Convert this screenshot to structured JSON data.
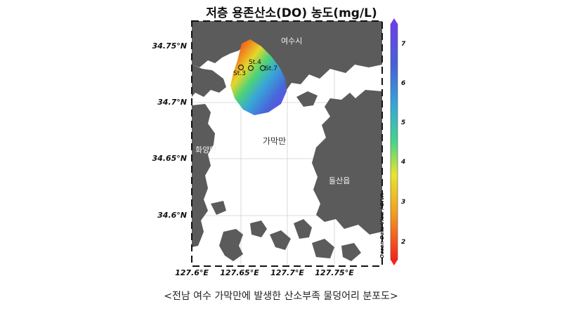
{
  "title": "저층 용존산소(DO) 농도(mg/L)",
  "caption": "<전남 여수 가막만에 발생한 산소부족 물덩어리 분포도>",
  "axes": {
    "lat_ticks": [
      "34.75°N",
      "34.7°N",
      "34.65°N",
      "34.6°N"
    ],
    "lon_ticks": [
      "127.6°E",
      "127.65°E",
      "127.7°E",
      "127.75°E"
    ]
  },
  "place_labels": {
    "yeosu": "여수시",
    "gamak_bay": "가막만",
    "hwayang": "화양면",
    "dolsan": "돌산읍"
  },
  "stations": [
    "St.3",
    "St.4",
    "St.7"
  ],
  "colorbar": {
    "ticks": [
      "7",
      "6",
      "5",
      "4",
      "3",
      "2"
    ],
    "min": 1.5,
    "max": 7.5,
    "colors": [
      "#f8231c",
      "#f0a020",
      "#e7e52a",
      "#48d48a",
      "#36a8d8",
      "#4662d8",
      "#6a3ff0"
    ]
  },
  "credit": "Ocean Data View / DIVA",
  "colors": {
    "land": "#5b5b5b",
    "water": "#ffffff",
    "frame": "#111111"
  }
}
